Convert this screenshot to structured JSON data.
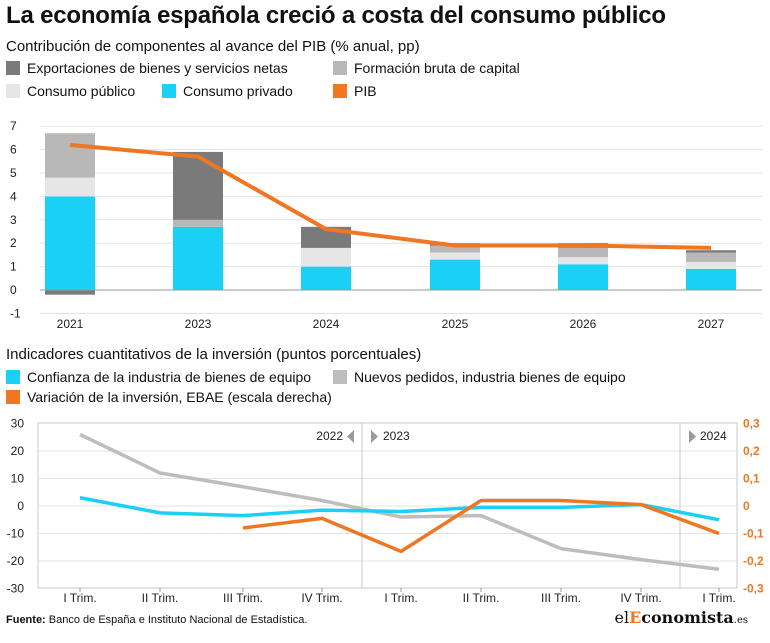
{
  "title": "La economía española creció a costa del consumo público",
  "colors": {
    "exports": "#7a7a7a",
    "fbc": "#b8b8b8",
    "consumo_publico": "#e6e6e6",
    "consumo_privado": "#1ad0f5",
    "pib": "#f07622",
    "confianza": "#1ad0f5",
    "pedidos": "#bdbdbd",
    "inversion": "#f07622"
  },
  "legend1": {
    "exports": "Exportaciones de bienes y servicios netas",
    "fbc": "Formación bruta de capital",
    "consumo_publico": "Consumo público",
    "consumo_privado": "Consumo privado",
    "pib": "PIB"
  },
  "legend2": {
    "confianza": "Confianza de la industria de bienes de equipo",
    "pedidos": "Nuevos pedidos, industria bienes de equipo",
    "inversion": "Variación de la inversión, EBAE (escala derecha)"
  },
  "chart_data": [
    {
      "type": "bar",
      "stacked": true,
      "title": "",
      "subtitle": "Contribución de componentes al avance del PIB (% anual, pp)",
      "categories": [
        "2021",
        "2023",
        "2024",
        "2025",
        "2026",
        "2027"
      ],
      "ylim": [
        -1,
        7
      ],
      "yticks": [
        "-1",
        "0",
        "1",
        "2",
        "3",
        "4",
        "5",
        "6",
        "7"
      ],
      "grid": true,
      "legend_position": "top",
      "series": [
        {
          "name": "Consumo privado",
          "values": [
            4.0,
            2.7,
            1.0,
            1.3,
            1.1,
            0.9
          ]
        },
        {
          "name": "Consumo público",
          "values": [
            0.8,
            0.0,
            0.8,
            0.3,
            0.3,
            0.3
          ]
        },
        {
          "name": "Formación bruta de capital",
          "values": [
            1.9,
            0.3,
            0.0,
            0.3,
            0.4,
            0.4
          ]
        },
        {
          "name": "Exportaciones de bienes y servicios netas",
          "values": [
            -0.2,
            2.9,
            0.9,
            0.1,
            0.2,
            0.1
          ]
        }
      ],
      "line_series": {
        "name": "PIB",
        "values": [
          6.2,
          5.7,
          2.6,
          1.9,
          1.9,
          1.8
        ]
      }
    },
    {
      "type": "line",
      "title": "",
      "subtitle": "Indicadores cuantitativos de la inversión (puntos porcentuales)",
      "categories": [
        "I Trim.",
        "II Trim.",
        "III Trim.",
        "IV Trim.",
        "I Trim.",
        "II Trim.",
        "III Trim.",
        "IV Trim.",
        "I Trim."
      ],
      "period_labels": [
        {
          "label": "2022",
          "after_index": 3,
          "side": "left"
        },
        {
          "label": "2023",
          "after_index": 3,
          "side": "right"
        },
        {
          "label": "2024",
          "after_index": 7,
          "side": "right"
        }
      ],
      "ylim_left": [
        -30,
        30
      ],
      "yticks_left": [
        "30",
        "20",
        "10",
        "0",
        "-10",
        "-20",
        "-30"
      ],
      "ylim_right": [
        -0.3,
        0.3
      ],
      "yticks_right": [
        "0,3",
        "0,2",
        "0,1",
        "0",
        "-0,1",
        "-0,2",
        "-0,3"
      ],
      "series": [
        {
          "name": "Confianza de la industria de bienes de equipo",
          "axis": "left",
          "values": [
            3,
            -2.5,
            -3.5,
            -1.5,
            -2,
            -0.5,
            -0.5,
            0.5,
            -5
          ]
        },
        {
          "name": "Nuevos pedidos, industria bienes de equipo",
          "axis": "left",
          "values": [
            26,
            12,
            7,
            2,
            -4,
            -3.5,
            -15.5,
            -19.5,
            -23
          ]
        },
        {
          "name": "Variación de la inversión, EBAE (escala derecha)",
          "axis": "right",
          "values": [
            null,
            null,
            -0.08,
            -0.045,
            -0.165,
            0.02,
            0.02,
            0.005,
            -0.1
          ]
        }
      ]
    }
  ],
  "footer": {
    "source_label": "Fuente:",
    "source_text": "Banco de España e Instituto Nacional de Estadística.",
    "logo_prefix": "el",
    "logo_accent": "E",
    "logo_rest": "conomista",
    "logo_suffix": ".es"
  }
}
